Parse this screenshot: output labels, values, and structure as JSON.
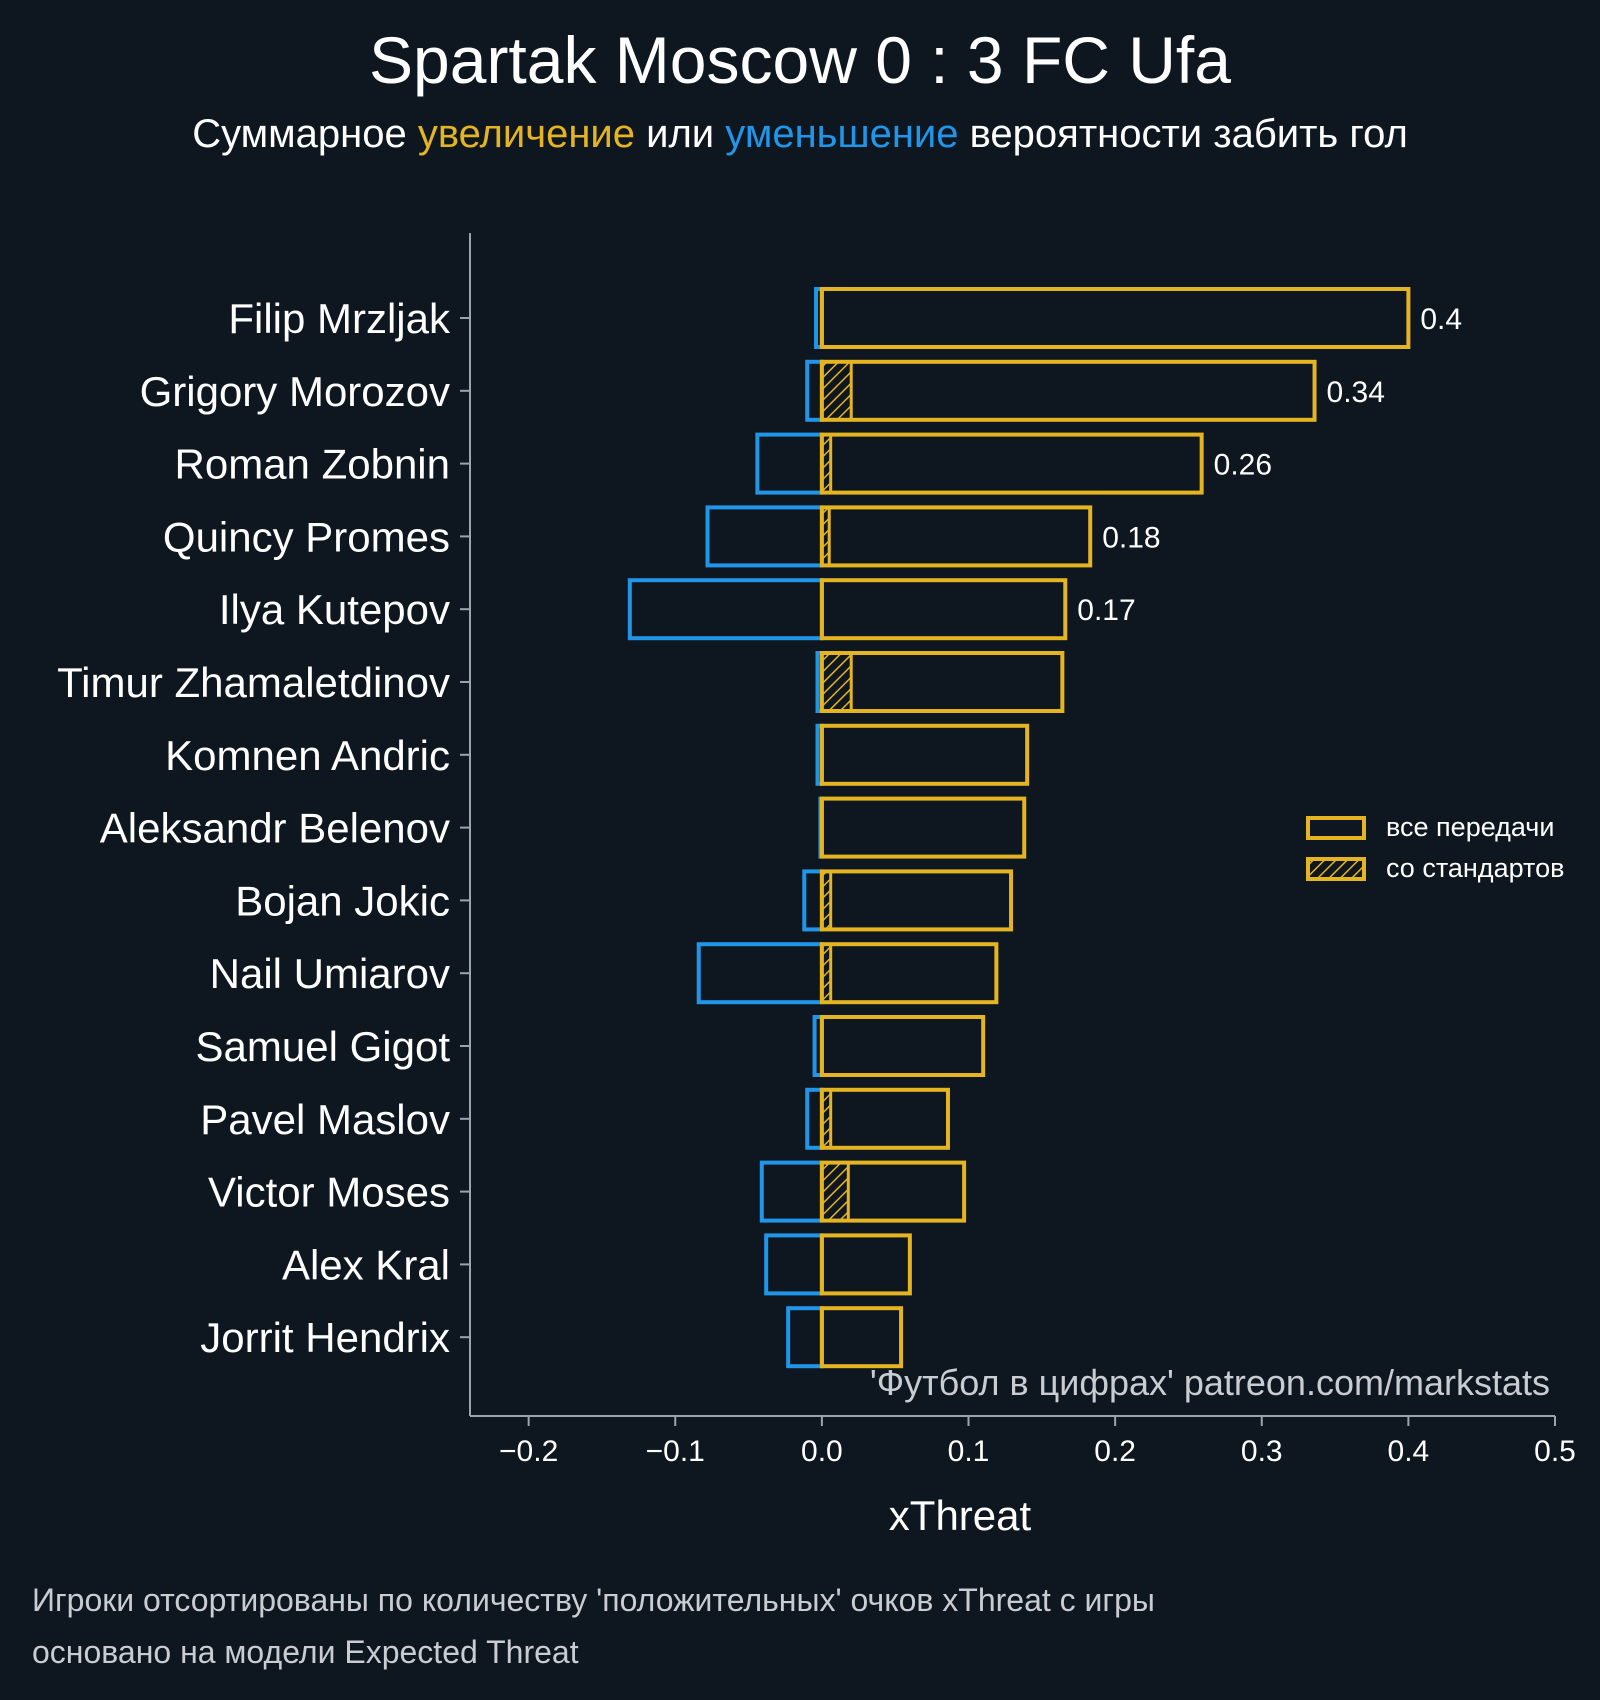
{
  "title": "Spartak Moscow 0 : 3 FC Ufa",
  "subtitle": {
    "prefix": "Суммарное ",
    "increase": "увеличение",
    "middle": " или ",
    "decrease": "уменьшение",
    "suffix": " вероятности забить гол"
  },
  "footnotes": [
    "Игроки отсортированы по количеству 'положительных' очков xThreat с игры",
    "основано на модели Expected Threat"
  ],
  "colors": {
    "background": "#0e1720",
    "positive": "#e5b421",
    "negative": "#2196e8",
    "axis": "#9aa4ad"
  },
  "chart_data": {
    "type": "bar",
    "orientation": "horizontal",
    "xlabel": "xThreat",
    "xlim": [
      -0.24,
      0.5
    ],
    "xticks": [
      -0.2,
      -0.1,
      0.0,
      0.1,
      0.2,
      0.3,
      0.4,
      0.5
    ],
    "xtick_labels": [
      "−0.2",
      "−0.1",
      "0.0",
      "0.1",
      "0.2",
      "0.3",
      "0.4",
      "0.5"
    ],
    "watermark": "'Футбол в цифрах' patreon.com/markstats",
    "legend": {
      "position": "center-right",
      "entries": [
        "все передачи",
        "со стандартов"
      ]
    },
    "categories": [
      "Filip Mrzljak",
      "Grigory Morozov",
      "Roman Zobnin",
      "Quincy Promes",
      "Ilya Kutepov",
      "Timur Zhamaletdinov",
      "Komnen Andric",
      "Aleksandr Belenov",
      "Bojan Jokic",
      "Nail Umiarov",
      "Samuel Gigot",
      "Pavel Maslov",
      "Victor Moses",
      "Alex Kral",
      "Jorrit Hendrix"
    ],
    "series": [
      {
        "name": "positive (все передачи)",
        "values": [
          0.4,
          0.336,
          0.259,
          0.183,
          0.166,
          0.164,
          0.14,
          0.138,
          0.129,
          0.119,
          0.11,
          0.086,
          0.097,
          0.06,
          0.054
        ]
      },
      {
        "name": "negative (все передачи)",
        "values": [
          -0.004,
          -0.01,
          -0.044,
          -0.078,
          -0.131,
          -0.003,
          -0.003,
          -0.001,
          -0.012,
          -0.084,
          -0.005,
          -0.01,
          -0.041,
          -0.038,
          -0.023
        ]
      },
      {
        "name": "со стандартов",
        "values": [
          0.0,
          0.02,
          0.006,
          0.005,
          0.0,
          0.02,
          0.0,
          0.0,
          0.006,
          0.006,
          0.0,
          0.006,
          0.018,
          0.0,
          0.0
        ]
      }
    ],
    "value_labels": [
      "0.4",
      "0.34",
      "0.26",
      "0.18",
      "0.17",
      "",
      "",
      "",
      "",
      "",
      "",
      "",
      "",
      "",
      ""
    ]
  }
}
